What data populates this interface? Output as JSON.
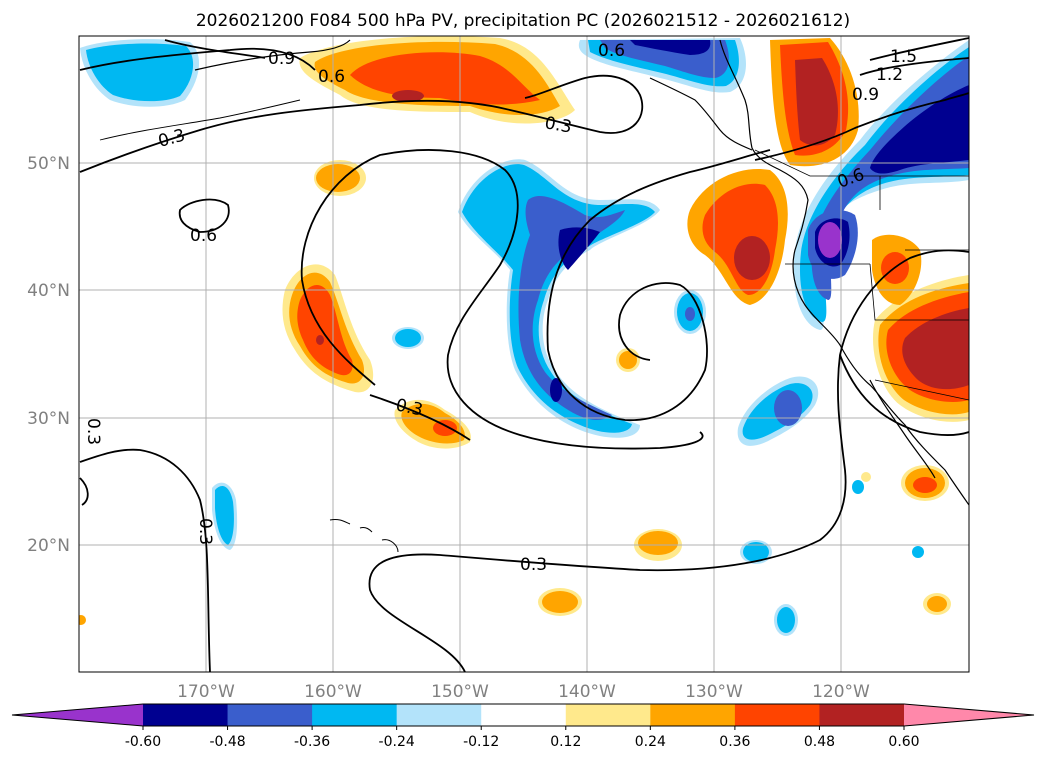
{
  "title": "2026021200 F084 500 hPa PV, precipitation PC (2026021512 - 2026021612)",
  "chart_data": {
    "type": "heatmap",
    "title": "2026021200 F084 500 hPa PV, precipitation PC (2026021512 - 2026021612)",
    "xlabel": "",
    "ylabel": "",
    "projection": "lat-lon map, North Pacific",
    "xlim": [
      -180,
      -110
    ],
    "ylim": [
      10,
      60
    ],
    "grid": true,
    "x_ticks": [
      {
        "value": -170,
        "label": "170°W"
      },
      {
        "value": -160,
        "label": "160°W"
      },
      {
        "value": -150,
        "label": "150°W"
      },
      {
        "value": -140,
        "label": "140°W"
      },
      {
        "value": -130,
        "label": "130°W"
      },
      {
        "value": -120,
        "label": "120°W"
      }
    ],
    "y_ticks": [
      {
        "value": 20,
        "label": "20°N"
      },
      {
        "value": 30,
        "label": "30°N"
      },
      {
        "value": 40,
        "label": "40°N"
      },
      {
        "value": 50,
        "label": "50°N"
      }
    ],
    "contour_labels": [
      "0.9",
      "0.6",
      "0.3",
      "0.6",
      "0.6",
      "1.5",
      "1.2",
      "0.9",
      "0.3",
      "0.6",
      "0.3",
      "0.3",
      "0.3",
      "0.3"
    ],
    "colorbar": {
      "orientation": "horizontal",
      "extend": "both",
      "ticks": [
        "-0.60",
        "-0.48",
        "-0.36",
        "-0.24",
        "-0.12",
        "0.12",
        "0.24",
        "0.36",
        "0.48",
        "0.60"
      ],
      "colors": [
        "#9933cc",
        "#000090",
        "#3a5ecc",
        "#00b8f2",
        "#b3e3fa",
        "#ffffff",
        "#ffe98c",
        "#ffa500",
        "#ff4400",
        "#b22222",
        "#ff88aa"
      ]
    }
  }
}
